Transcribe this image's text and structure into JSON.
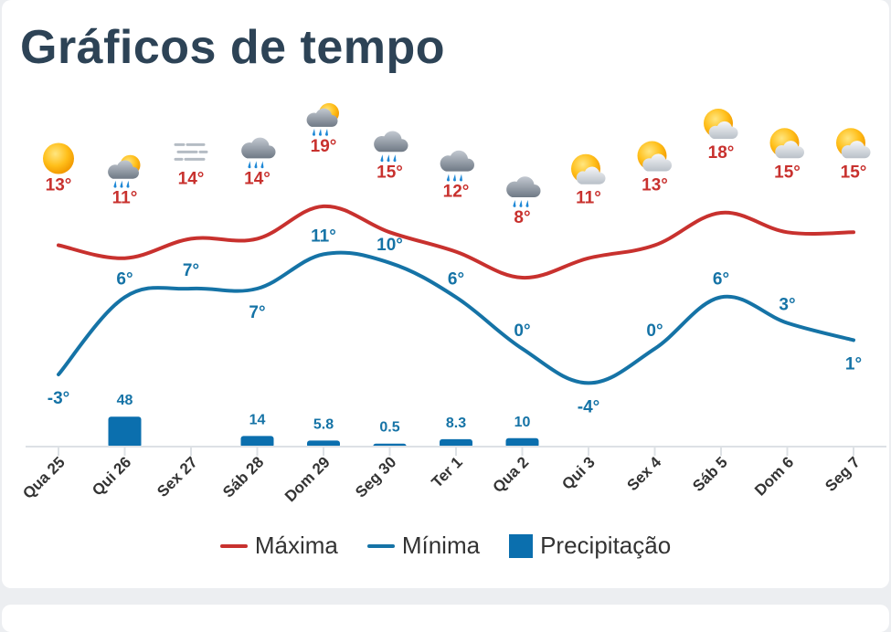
{
  "title": "Gráficos de tempo",
  "colors": {
    "max": "#c8312e",
    "min": "#1573a6",
    "precip": "#0b6fae",
    "title": "#2d4356"
  },
  "legend": {
    "max_label": "Máxima",
    "min_label": "Mínima",
    "precip_label": "Precipitação"
  },
  "chart_data": {
    "type": "line",
    "title": "Gráficos de tempo",
    "categories": [
      "Qua 25",
      "Qui 26",
      "Sex 27",
      "Sáb 28",
      "Dom 29",
      "Seg 30",
      "Ter 1",
      "Qua 2",
      "Qui 3",
      "Sex 4",
      "Sáb 5",
      "Dom 6",
      "Seg 7"
    ],
    "icons": [
      "sun-icon",
      "sun-cloud-rain-icon",
      "fog-icon",
      "cloud-rain-icon",
      "sun-cloud-rain-icon",
      "cloud-rain-icon",
      "cloud-rain-icon",
      "cloud-rain-icon",
      "sun-cloud-icon",
      "sun-cloud-icon",
      "sun-cloud-icon",
      "sun-cloud-icon",
      "sun-cloud-icon"
    ],
    "series": [
      {
        "name": "Máxima",
        "values": [
          13,
          11,
          14,
          14,
          19,
          15,
          12,
          8,
          11,
          13,
          18,
          15,
          15
        ],
        "labels": [
          "13°",
          "11°",
          "14°",
          "14°",
          "19°",
          "15°",
          "12°",
          "8°",
          "11°",
          "13°",
          "18°",
          "15°",
          "15°"
        ]
      },
      {
        "name": "Mínima",
        "values": [
          -3,
          6,
          7,
          7,
          11,
          10,
          6,
          0,
          -4,
          0,
          6,
          3,
          1
        ],
        "labels": [
          "-3°",
          "6°",
          "7°",
          "7°",
          "11°",
          "10°",
          "6°",
          "0°",
          "-4°",
          "0°",
          "6°",
          "3°",
          "1°"
        ]
      }
    ],
    "precipitation": {
      "name": "Precipitação",
      "values": [
        0,
        48,
        0,
        14,
        5.8,
        0.5,
        8.3,
        10,
        0,
        0,
        0,
        0,
        0
      ],
      "labels": [
        "",
        "48",
        "",
        "14",
        "5.8",
        "0.5",
        "8.3",
        "10",
        "",
        "",
        "",
        "",
        ""
      ]
    }
  }
}
